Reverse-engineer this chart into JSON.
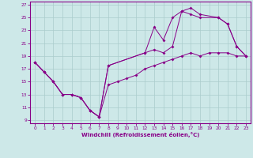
{
  "xlabel": "Windchill (Refroidissement éolien,°C)",
  "bg_color": "#cde8e8",
  "line_color": "#880088",
  "grid_color": "#aacccc",
  "xlim": [
    -0.5,
    23.5
  ],
  "ylim": [
    8.5,
    27.5
  ],
  "xticks": [
    0,
    1,
    2,
    3,
    4,
    5,
    6,
    7,
    8,
    9,
    10,
    11,
    12,
    13,
    14,
    15,
    16,
    17,
    18,
    19,
    20,
    21,
    22,
    23
  ],
  "yticks": [
    9,
    11,
    13,
    15,
    17,
    19,
    21,
    23,
    25,
    27
  ],
  "line1_x": [
    0,
    1,
    2,
    3,
    4,
    5,
    6,
    7,
    8,
    12,
    13,
    14,
    15,
    16,
    17,
    18,
    20,
    21,
    22,
    23
  ],
  "line1_y": [
    18.0,
    16.5,
    15.0,
    13.0,
    13.0,
    12.5,
    10.5,
    9.5,
    17.5,
    19.5,
    20.0,
    19.5,
    20.5,
    26.0,
    25.5,
    25.0,
    25.0,
    24.0,
    20.5,
    19.0
  ],
  "line2_x": [
    0,
    1,
    2,
    3,
    4,
    5,
    6,
    7,
    8,
    12,
    13,
    14,
    15,
    16,
    17,
    18,
    20,
    21,
    22,
    23
  ],
  "line2_y": [
    18.0,
    16.5,
    15.0,
    13.0,
    13.0,
    12.5,
    10.5,
    9.5,
    17.5,
    19.5,
    23.5,
    21.5,
    25.0,
    26.0,
    26.5,
    25.5,
    25.0,
    24.0,
    20.5,
    19.0
  ],
  "line3_x": [
    0,
    1,
    2,
    3,
    4,
    5,
    6,
    7,
    8,
    9,
    10,
    11,
    12,
    13,
    14,
    15,
    16,
    17,
    18,
    19,
    20,
    21,
    22,
    23
  ],
  "line3_y": [
    18.0,
    16.5,
    15.0,
    13.0,
    13.0,
    12.5,
    10.5,
    9.5,
    14.5,
    15.0,
    15.5,
    16.0,
    17.0,
    17.5,
    18.0,
    18.5,
    19.0,
    19.5,
    19.0,
    19.5,
    19.5,
    19.5,
    19.0,
    19.0
  ]
}
